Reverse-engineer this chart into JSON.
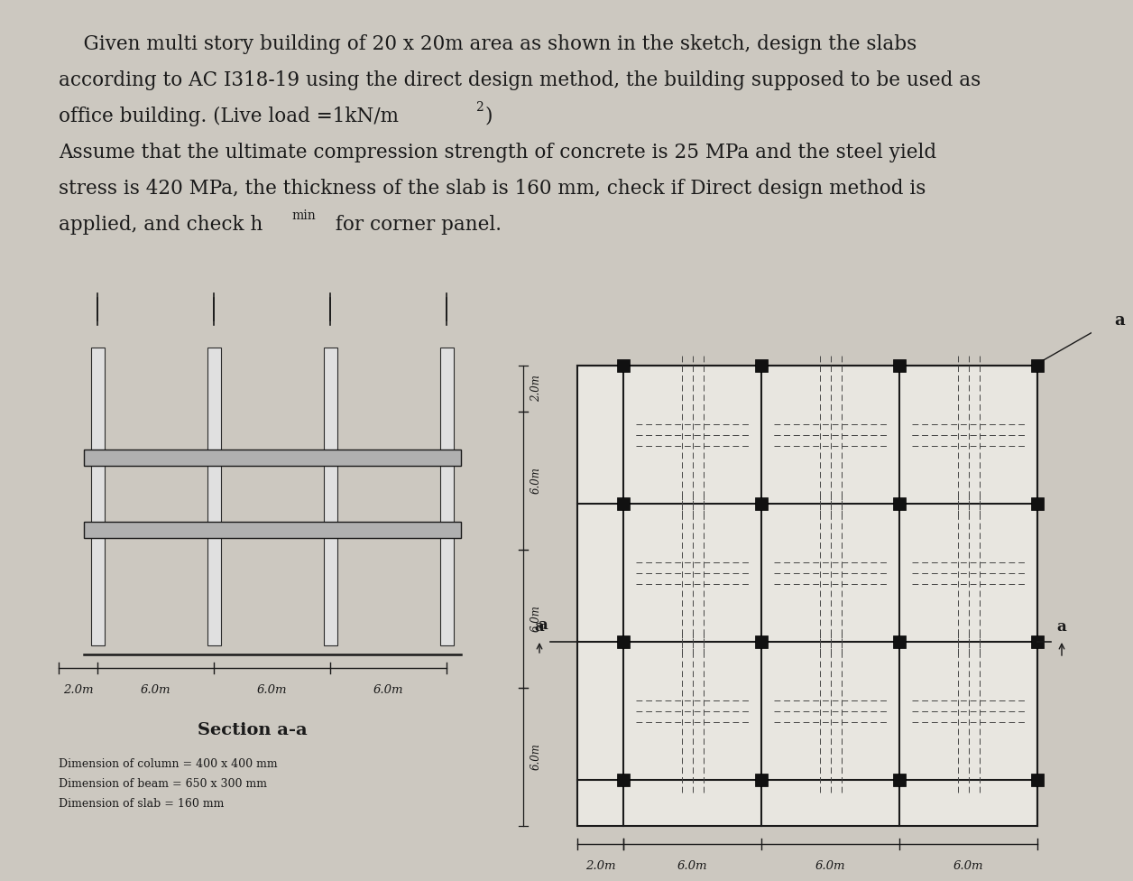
{
  "bg_color": "#ccc8c0",
  "text_color": "#1a1a1a",
  "section_title": "Section a-a",
  "dim_labels": [
    "Dimension of column = 400 x 400 mm",
    "Dimension of beam = 650 x 300 mm",
    "Dimension of slab = 160 mm"
  ],
  "section_x_labels": [
    "2.0m",
    "6.0m",
    "6.0m",
    "6.0m"
  ],
  "plan_x_labels": [
    "2.0m",
    "6.0m",
    "6.0m",
    "6.0m"
  ],
  "plan_y_labels": [
    "2.0m",
    "6.0m",
    "6.0m",
    "6.0m"
  ]
}
